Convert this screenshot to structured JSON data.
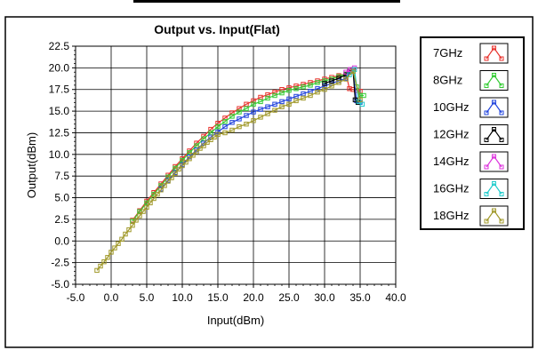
{
  "chart_data": {
    "type": "line",
    "title": "Output vs. Input(Flat)",
    "xlabel": "Input(dBm)",
    "ylabel": "Output(dBm)",
    "xlim": [
      -5,
      40
    ],
    "ylim": [
      -5,
      22.5
    ],
    "x_ticks": [
      "-5.0",
      "0.0",
      "5.0",
      "10.0",
      "15.0",
      "20.0",
      "25.0",
      "30.0",
      "35.0",
      "40.0"
    ],
    "x_tick_values": [
      -5,
      0,
      5,
      10,
      15,
      20,
      25,
      30,
      35,
      40
    ],
    "y_ticks": [
      "-5.0",
      "-2.5",
      "0.0",
      "2.5",
      "5.0",
      "7.5",
      "10.0",
      "12.5",
      "15.0",
      "17.5",
      "20.0",
      "22.5"
    ],
    "y_tick_values": [
      -5,
      -2.5,
      0,
      2.5,
      5,
      7.5,
      10,
      12.5,
      15,
      17.5,
      20,
      22.5
    ],
    "grid": true,
    "legend_position": "right",
    "series": [
      {
        "name": "7GHz",
        "color": "#e8322c",
        "points": [
          [
            3,
            2.4
          ],
          [
            4,
            3.5
          ],
          [
            5,
            4.6
          ],
          [
            6,
            5.6
          ],
          [
            7,
            6.6
          ],
          [
            8,
            7.6
          ],
          [
            9,
            8.6
          ],
          [
            10,
            9.5
          ],
          [
            11,
            10.4
          ],
          [
            12,
            11.3
          ],
          [
            13,
            12.1
          ],
          [
            14,
            12.9
          ],
          [
            15,
            13.6
          ],
          [
            16,
            14.2
          ],
          [
            17,
            14.8
          ],
          [
            18,
            15.3
          ],
          [
            19,
            15.8
          ],
          [
            20,
            16.2
          ],
          [
            21,
            16.6
          ],
          [
            22,
            16.9
          ],
          [
            23,
            17.2
          ],
          [
            24,
            17.5
          ],
          [
            25,
            17.7
          ],
          [
            26,
            17.9
          ],
          [
            27,
            18.1
          ],
          [
            28,
            18.3
          ],
          [
            29,
            18.5
          ],
          [
            30,
            18.7
          ],
          [
            31,
            18.9
          ],
          [
            32,
            19.1
          ],
          [
            33,
            19.3
          ],
          [
            33.5,
            17.6
          ],
          [
            34,
            17.5
          ],
          [
            34.5,
            17.4
          ],
          [
            35,
            17.3
          ]
        ]
      },
      {
        "name": "8GHz",
        "color": "#33cc33",
        "points": [
          [
            3,
            2.3
          ],
          [
            4,
            3.4
          ],
          [
            5,
            4.4
          ],
          [
            6,
            5.4
          ],
          [
            7,
            6.4
          ],
          [
            8,
            7.4
          ],
          [
            9,
            8.4
          ],
          [
            10,
            9.3
          ],
          [
            11,
            10.2
          ],
          [
            12,
            11.0
          ],
          [
            13,
            11.8
          ],
          [
            14,
            12.5
          ],
          [
            15,
            13.2
          ],
          [
            16,
            13.8
          ],
          [
            17,
            14.4
          ],
          [
            18,
            14.9
          ],
          [
            19,
            15.3
          ],
          [
            20,
            15.8
          ],
          [
            21,
            16.1
          ],
          [
            22,
            16.5
          ],
          [
            23,
            16.8
          ],
          [
            24,
            17.1
          ],
          [
            25,
            17.4
          ],
          [
            26,
            17.6
          ],
          [
            27,
            17.8
          ],
          [
            28,
            18.0
          ],
          [
            29,
            18.3
          ],
          [
            30,
            18.5
          ],
          [
            31,
            18.7
          ],
          [
            32,
            19.0
          ],
          [
            33,
            19.3
          ],
          [
            34,
            19.8
          ],
          [
            34.5,
            17.8
          ],
          [
            35,
            16.8
          ],
          [
            35.5,
            16.8
          ]
        ]
      },
      {
        "name": "10GHz",
        "color": "#2244dd",
        "points": [
          [
            7,
            6.0
          ],
          [
            8,
            7.0
          ],
          [
            9,
            7.9
          ],
          [
            10,
            8.8
          ],
          [
            11,
            9.7
          ],
          [
            12,
            10.5
          ],
          [
            13,
            11.3
          ],
          [
            14,
            12.0
          ],
          [
            15,
            12.6
          ],
          [
            16,
            13.2
          ],
          [
            17,
            13.7
          ],
          [
            18,
            14.1
          ],
          [
            19,
            14.5
          ],
          [
            20,
            14.9
          ],
          [
            21,
            15.2
          ],
          [
            22,
            15.5
          ],
          [
            23,
            15.8
          ],
          [
            24,
            16.1
          ],
          [
            25,
            16.4
          ],
          [
            26,
            16.7
          ],
          [
            27,
            17.0
          ],
          [
            28,
            17.3
          ],
          [
            29,
            17.6
          ],
          [
            30,
            17.9
          ],
          [
            31,
            18.2
          ],
          [
            32,
            18.5
          ],
          [
            33,
            18.8
          ],
          [
            33.5,
            19.5
          ],
          [
            34,
            19.6
          ],
          [
            34.5,
            16.2
          ],
          [
            35,
            16.0
          ]
        ]
      },
      {
        "name": "12GHz",
        "color": "#000000",
        "points": [
          [
            30,
            18.2
          ],
          [
            31,
            18.5
          ],
          [
            32,
            18.8
          ],
          [
            33,
            19.2
          ],
          [
            33.5,
            19.6
          ],
          [
            34,
            19.8
          ],
          [
            34.3,
            16.3
          ],
          [
            34.7,
            16.0
          ]
        ]
      },
      {
        "name": "14GHz",
        "color": "#dd33dd",
        "points": [
          [
            33,
            19.5
          ],
          [
            33.6,
            19.8
          ],
          [
            34.2,
            20.0
          ]
        ]
      },
      {
        "name": "16GHz",
        "color": "#22cccc",
        "points": [
          [
            33.5,
            19.2
          ],
          [
            34.2,
            19.8
          ],
          [
            34.8,
            16.1
          ],
          [
            35.3,
            15.8
          ]
        ]
      },
      {
        "name": "18GHz",
        "color": "#a09828",
        "points": [
          [
            -2,
            -3.4
          ],
          [
            -1.5,
            -2.9
          ],
          [
            -1,
            -2.4
          ],
          [
            -0.5,
            -1.9
          ],
          [
            0,
            -1.3
          ],
          [
            0.5,
            -0.8
          ],
          [
            1,
            -0.3
          ],
          [
            1.5,
            0.2
          ],
          [
            2,
            0.8
          ],
          [
            2.5,
            1.3
          ],
          [
            3,
            1.8
          ],
          [
            3.5,
            2.4
          ],
          [
            4,
            2.9
          ],
          [
            4.5,
            3.4
          ],
          [
            5,
            3.9
          ],
          [
            5.5,
            4.4
          ],
          [
            6,
            4.9
          ],
          [
            6.5,
            5.4
          ],
          [
            7,
            5.9
          ],
          [
            7.5,
            6.4
          ],
          [
            8,
            6.9
          ],
          [
            8.5,
            7.3
          ],
          [
            9,
            7.8
          ],
          [
            9.5,
            8.3
          ],
          [
            10,
            8.7
          ],
          [
            10.5,
            9.1
          ],
          [
            11,
            9.5
          ],
          [
            11.5,
            9.9
          ],
          [
            12,
            10.3
          ],
          [
            12.5,
            10.7
          ],
          [
            13,
            11.0
          ],
          [
            13.5,
            11.4
          ],
          [
            14,
            11.7
          ],
          [
            14.5,
            12.0
          ],
          [
            15,
            12.3
          ],
          [
            16,
            12.5
          ],
          [
            17,
            12.8
          ],
          [
            18,
            13.2
          ],
          [
            19,
            13.5
          ],
          [
            20,
            13.9
          ],
          [
            21,
            14.3
          ],
          [
            22,
            14.7
          ],
          [
            23,
            15.1
          ],
          [
            24,
            15.5
          ],
          [
            25,
            15.8
          ],
          [
            26,
            16.2
          ],
          [
            27,
            16.5
          ],
          [
            28,
            16.8
          ],
          [
            29,
            17.2
          ],
          [
            30,
            17.5
          ],
          [
            31,
            17.9
          ],
          [
            32,
            18.3
          ],
          [
            33,
            18.7
          ],
          [
            34,
            19.6
          ],
          [
            35,
            16.3
          ]
        ]
      }
    ]
  }
}
